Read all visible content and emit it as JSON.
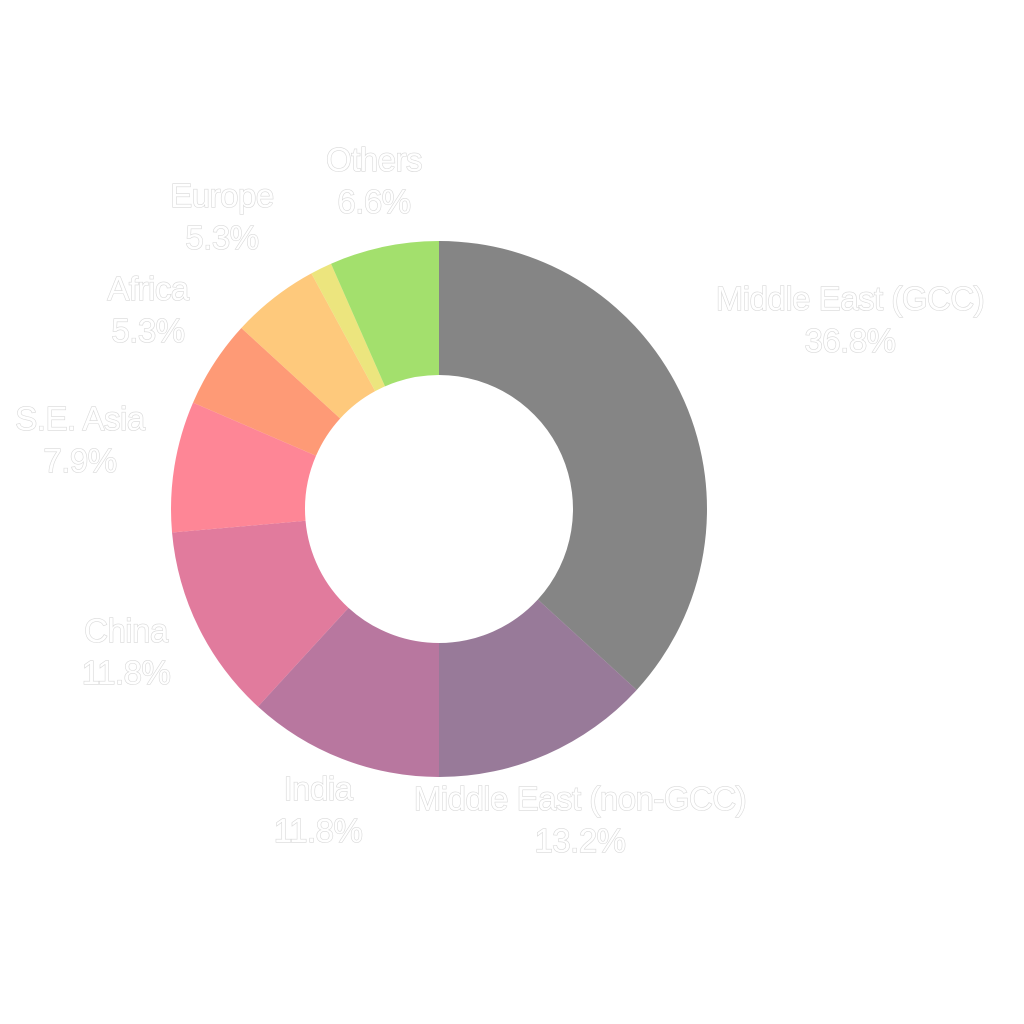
{
  "chart_data": {
    "type": "pie",
    "variant": "donut",
    "start_angle": "12 o'clock",
    "direction": "clockwise",
    "title": "",
    "legend": "none",
    "slices": [
      {
        "label": "Middle East (GCC)",
        "value": 36.8,
        "value_label": "36.8%",
        "color": "#858585"
      },
      {
        "label": "Middle East (non-GCC)",
        "value": 13.2,
        "value_label": "13.2%",
        "color": "#987a99"
      },
      {
        "label": "India",
        "value": 11.8,
        "value_label": "11.8%",
        "color": "#b8779f"
      },
      {
        "label": "China",
        "value": 11.8,
        "value_label": "11.8%",
        "color": "#e17b9d"
      },
      {
        "label": "S.E. Asia",
        "value": 7.9,
        "value_label": "7.9%",
        "color": "#fe8696"
      },
      {
        "label": "Africa",
        "value": 5.3,
        "value_label": "5.3%",
        "color": "#fe9a76"
      },
      {
        "label": "Europe",
        "value": 5.3,
        "value_label": "5.3%",
        "color": "#fec97c"
      },
      {
        "label": "",
        "value": 1.3,
        "value_label": "",
        "color": "#ece57e"
      },
      {
        "label": "Others",
        "value": 6.6,
        "value_label": "6.6%",
        "color": "#a3e06d"
      }
    ]
  }
}
